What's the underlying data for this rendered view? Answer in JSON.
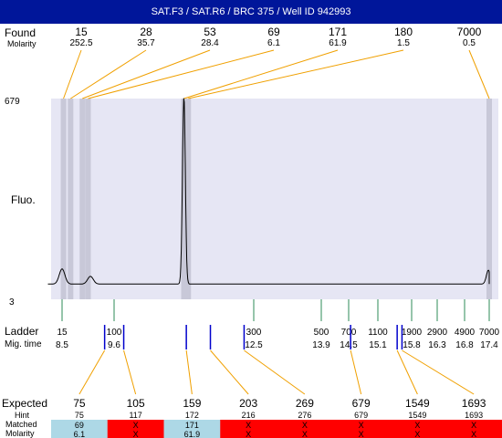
{
  "header": {
    "title": "SAT.F3 / SAT.R6 / BRC 375 / Well ID 942993"
  },
  "labels": {
    "found": "Found",
    "molarity": "Molarity",
    "fluo": "Fluo.",
    "ladder": "Ladder",
    "mig_time": "Mig. time",
    "expected": "Expected",
    "hint": "Hint",
    "matched": "Matched",
    "molarity_bottom": "Molarity"
  },
  "colors": {
    "title_bg": "#00169a",
    "plot_bg": "#e6e6f4",
    "peak_band": "#c8c8d8",
    "connector": "#f0a000",
    "ladder_tick": "#2e8b57",
    "sample_tick": "#0000cc",
    "matched_bg": "#add8e6",
    "unmatched_bg": "#ff0000"
  },
  "chart_data": {
    "type": "line",
    "y_axis": {
      "max_label": "679",
      "min_label": "3",
      "ylim": [
        3,
        679
      ]
    },
    "found": [
      {
        "size": "15",
        "molarity": "252.5",
        "time": 8.53
      },
      {
        "size": "28",
        "molarity": "35.7",
        "time": 8.68
      },
      {
        "size": "53",
        "molarity": "28.4",
        "time": 8.93
      },
      {
        "size": "69",
        "molarity": "6.1",
        "time": 9.05
      },
      {
        "size": "171",
        "molarity": "61.9",
        "time": 11.05
      },
      {
        "size": "180",
        "molarity": "1.5",
        "time": 11.14
      },
      {
        "size": "7000",
        "molarity": "0.5",
        "time": 17.4
      }
    ],
    "ladder": [
      {
        "size": "15",
        "time": "8.5"
      },
      {
        "size": "100",
        "time": "9.6"
      },
      {
        "size": "300",
        "time": "12.5"
      },
      {
        "size": "500",
        "time": "13.9"
      },
      {
        "size": "700",
        "time": "14.5"
      },
      {
        "size": "1100",
        "time": "15.1"
      },
      {
        "size": "1900",
        "time": "15.8"
      },
      {
        "size": "2900",
        "time": "16.3"
      },
      {
        "size": "4900",
        "time": "16.8"
      },
      {
        "size": "7000",
        "time": "17.4"
      }
    ],
    "expected": [
      {
        "size": "75",
        "hint": "75",
        "matched": "69",
        "molarity": "6.1",
        "is_matched": true,
        "time": 9.4
      },
      {
        "size": "105",
        "hint": "117",
        "matched": "X",
        "molarity": "X",
        "is_matched": false,
        "time": 9.8
      },
      {
        "size": "159",
        "hint": "172",
        "matched": "171",
        "molarity": "61.9",
        "is_matched": true,
        "time": 11.1
      },
      {
        "size": "203",
        "hint": "216",
        "matched": "X",
        "molarity": "X",
        "is_matched": false,
        "time": 11.6
      },
      {
        "size": "269",
        "hint": "276",
        "matched": "X",
        "molarity": "X",
        "is_matched": false,
        "time": 12.3
      },
      {
        "size": "679",
        "hint": "679",
        "matched": "X",
        "molarity": "X",
        "is_matched": false,
        "time": 14.54
      },
      {
        "size": "1549",
        "hint": "1549",
        "matched": "X",
        "molarity": "X",
        "is_matched": false,
        "time": 15.5
      },
      {
        "size": "1693",
        "hint": "1693",
        "matched": "X",
        "molarity": "X",
        "is_matched": false,
        "time": 15.6
      }
    ],
    "trace": {
      "baseline": 12,
      "peaks": [
        {
          "time": 8.5,
          "height": 55,
          "width": 0.06
        },
        {
          "time": 9.1,
          "height": 28,
          "width": 0.06
        },
        {
          "time": 11.05,
          "height": 679,
          "width": 0.03
        },
        {
          "time": 17.38,
          "height": 50,
          "width": 0.05
        }
      ]
    }
  }
}
